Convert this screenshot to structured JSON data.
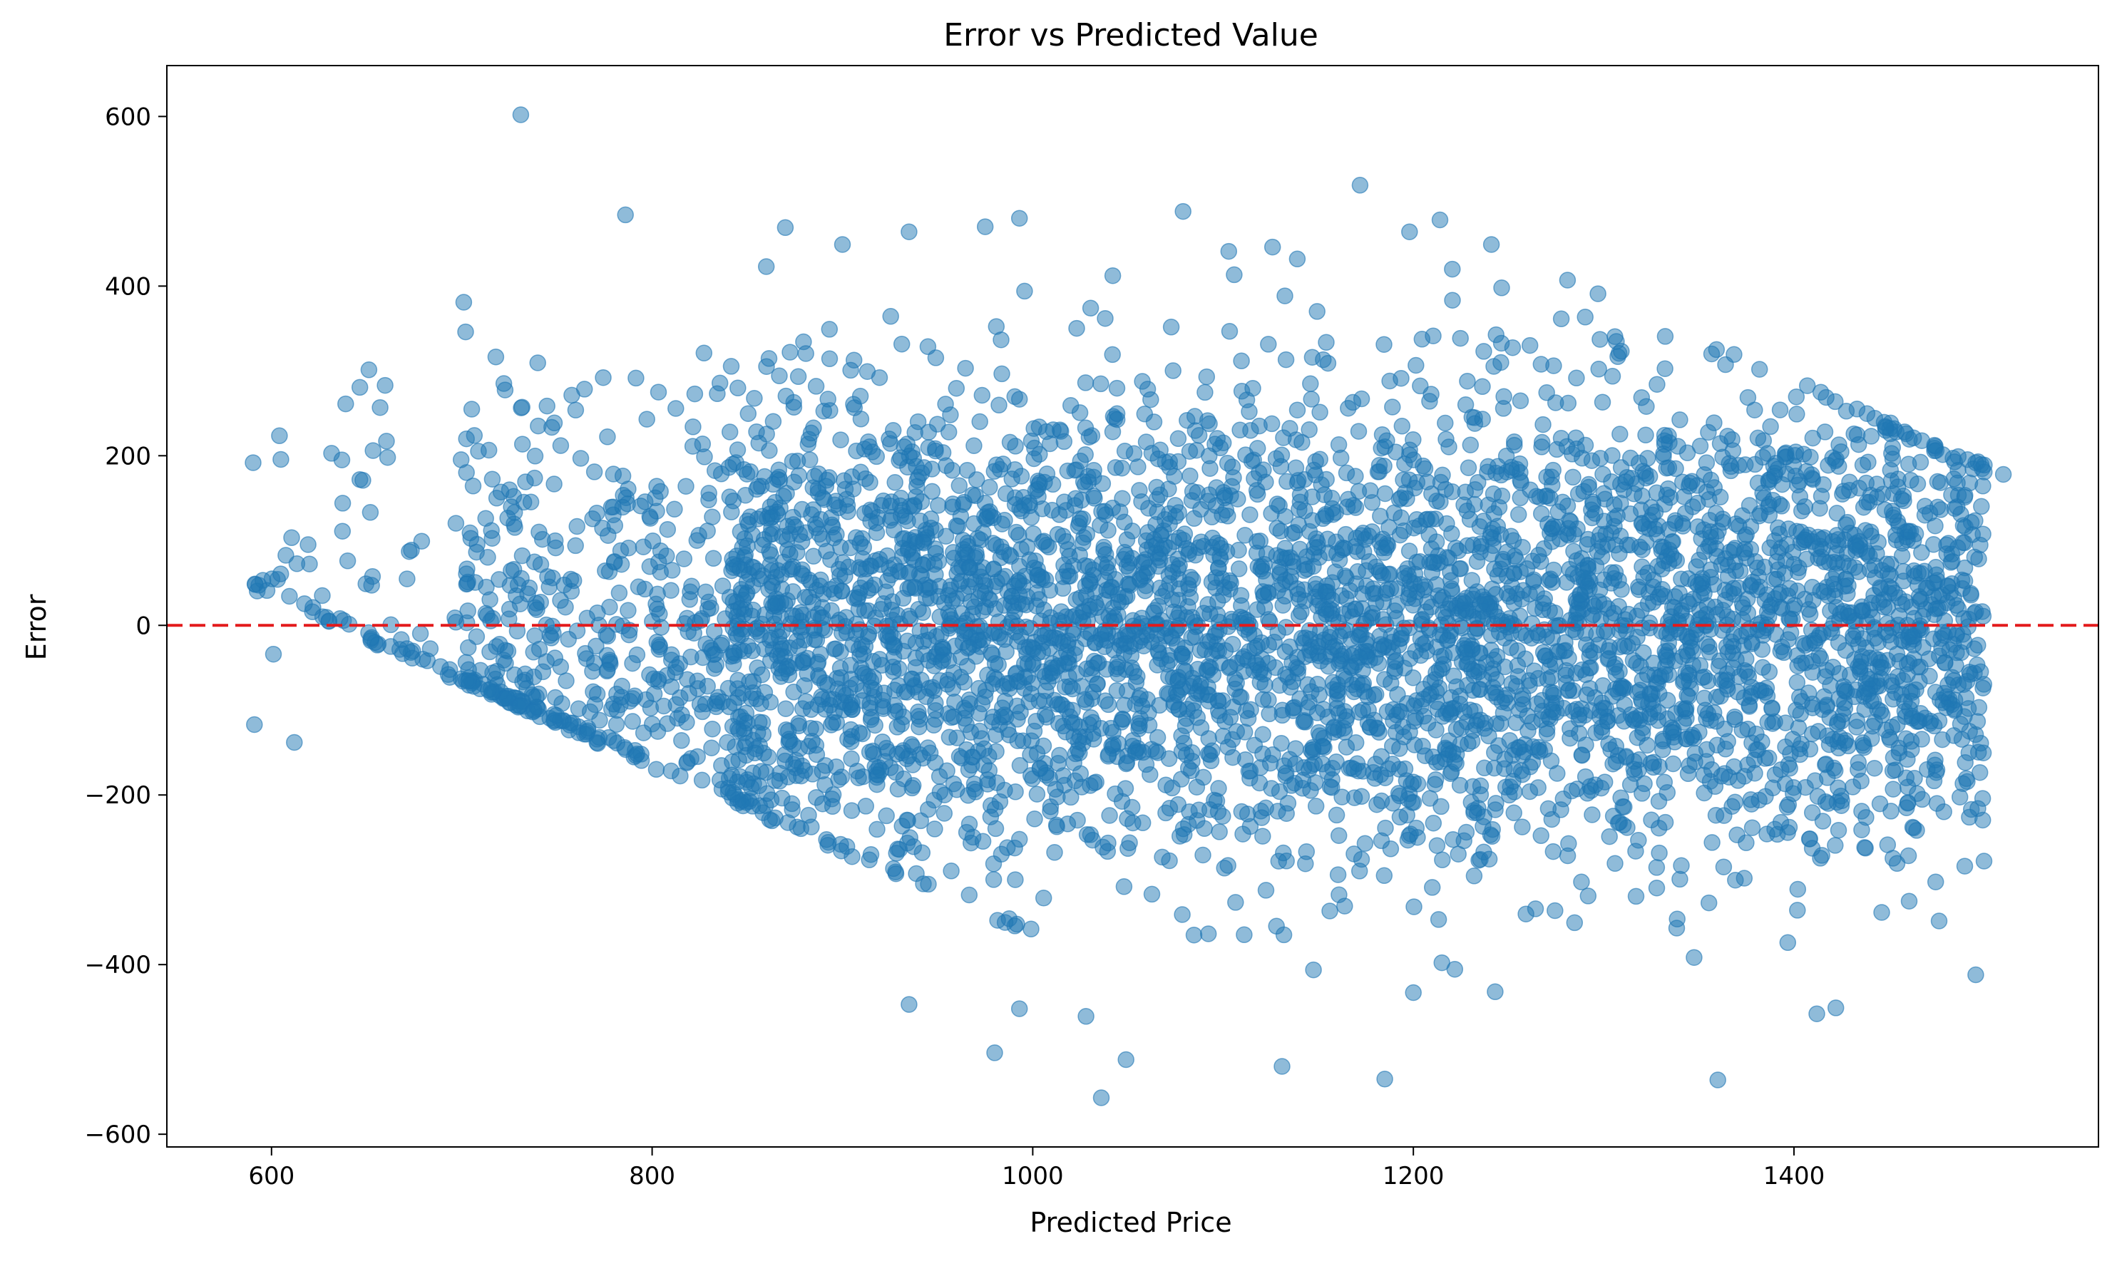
{
  "chart_data": {
    "type": "scatter",
    "title": "Error vs Predicted Value",
    "xlabel": "Predicted Price",
    "ylabel": "Error",
    "xlim": [
      545,
      1560
    ],
    "ylim": [
      -615,
      660
    ],
    "xticks": [
      600,
      800,
      1000,
      1200,
      1400
    ],
    "yticks": [
      -600,
      -400,
      -200,
      0,
      200,
      400,
      600
    ],
    "xtick_labels": [
      "600",
      "800",
      "1000",
      "1200",
      "1400"
    ],
    "ytick_labels": [
      "−600",
      "−400",
      "−200",
      "0",
      "200",
      "400",
      "600"
    ],
    "grid": false,
    "legend": "none",
    "point_color": "#1f77b4",
    "point_alpha": 0.5,
    "reference_line": {
      "y": 0,
      "color": "#e31a1c",
      "style": "dashed"
    },
    "approx_point_count": 5000,
    "distribution_note": "dense cloud centered on zero error; lower edge follows the line error ≈ 630 − predicted price (price floor), upper edge follows error ≈ 1690 − predicted price near the right",
    "highlighted_points": [
      {
        "x": 731,
        "y": 602
      },
      {
        "x": 786,
        "y": 484
      },
      {
        "x": 1172,
        "y": 519
      },
      {
        "x": 1079,
        "y": 488
      },
      {
        "x": 1214,
        "y": 478
      },
      {
        "x": 1241,
        "y": 449
      },
      {
        "x": 993,
        "y": 480
      },
      {
        "x": 870,
        "y": 469
      },
      {
        "x": 935,
        "y": 464
      },
      {
        "x": 975,
        "y": 470
      },
      {
        "x": 900,
        "y": 449
      },
      {
        "x": 1126,
        "y": 446
      },
      {
        "x": 1103,
        "y": 441
      },
      {
        "x": 1198,
        "y": 464
      },
      {
        "x": 701,
        "y": 381
      },
      {
        "x": 702,
        "y": 346
      },
      {
        "x": 860,
        "y": 423
      },
      {
        "x": 1139,
        "y": 432
      },
      {
        "x": 1297,
        "y": 391
      },
      {
        "x": 1281,
        "y": 407
      },
      {
        "x": 591,
        "y": -117
      },
      {
        "x": 601,
        "y": -34
      },
      {
        "x": 612,
        "y": -138
      },
      {
        "x": 636,
        "y": 8
      },
      {
        "x": 640,
        "y": 76
      },
      {
        "x": 648,
        "y": 171
      },
      {
        "x": 661,
        "y": 198
      },
      {
        "x": 1036,
        "y": -557
      },
      {
        "x": 1049,
        "y": -512
      },
      {
        "x": 1131,
        "y": -520
      },
      {
        "x": 1185,
        "y": -535
      },
      {
        "x": 1360,
        "y": -536
      },
      {
        "x": 980,
        "y": -504
      },
      {
        "x": 1412,
        "y": -458
      },
      {
        "x": 1422,
        "y": -451
      },
      {
        "x": 1028,
        "y": -461
      },
      {
        "x": 993,
        "y": -452
      },
      {
        "x": 935,
        "y": -447
      },
      {
        "x": 1200,
        "y": -433
      },
      {
        "x": 1243,
        "y": -432
      },
      {
        "x": 1510,
        "y": 178
      },
      {
        "x": 1500,
        "y": 189
      },
      {
        "x": 1490,
        "y": 116
      },
      {
        "x": 1483,
        "y": 84
      },
      {
        "x": 1484,
        "y": -130
      },
      {
        "x": 1480,
        "y": -97
      },
      {
        "x": 1479,
        "y": -80
      },
      {
        "x": 1470,
        "y": -170
      }
    ]
  }
}
